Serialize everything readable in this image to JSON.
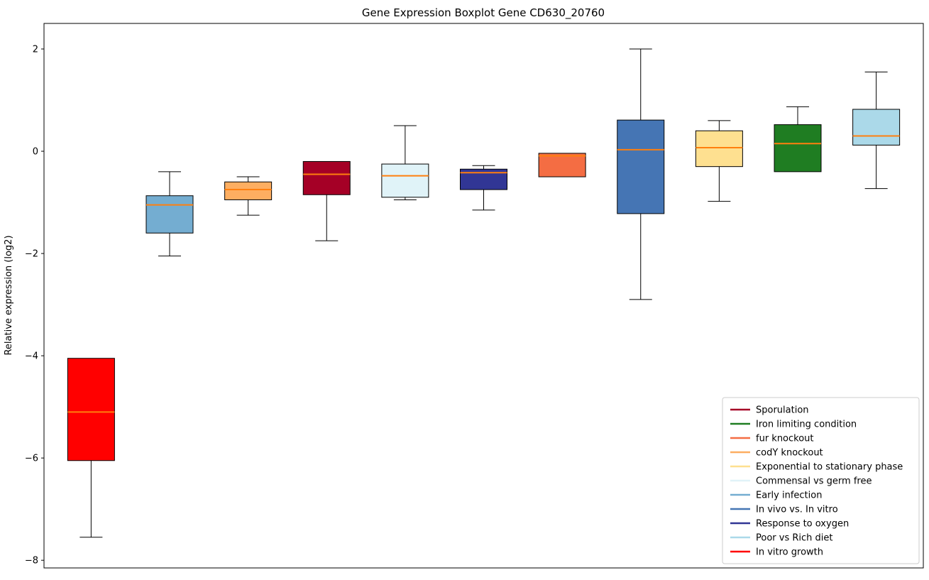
{
  "chart_data": {
    "type": "boxplot",
    "title": "Gene Expression Boxplot Gene CD630_20760",
    "xlabel": "",
    "ylabel": "Relative expression (log2)",
    "ylim": [
      -8.15,
      2.5
    ],
    "yticks": [
      2,
      0,
      -2,
      -4,
      -6,
      -8
    ],
    "ytick_labels": [
      "2",
      "0",
      "−2",
      "−4",
      "−6",
      "−8"
    ],
    "grid": false,
    "median_color": "#ff7f0e",
    "whisker_color": "#000000",
    "box_edge_color": "#000000",
    "legend_position": "lower right",
    "groups": [
      {
        "name": "In vitro growth",
        "color": "#ff0000",
        "q1": -6.05,
        "median": -5.1,
        "q3": -4.05,
        "whisker_low": -7.55,
        "whisker_high": -4.05
      },
      {
        "name": "Early infection",
        "color": "#74add1",
        "q1": -1.6,
        "median": -1.05,
        "q3": -0.87,
        "whisker_low": -2.05,
        "whisker_high": -0.4
      },
      {
        "name": "codY knockout",
        "color": "#fdae61",
        "q1": -0.95,
        "median": -0.75,
        "q3": -0.6,
        "whisker_low": -1.25,
        "whisker_high": -0.5
      },
      {
        "name": "Sporulation",
        "color": "#a50026",
        "q1": -0.85,
        "median": -0.45,
        "q3": -0.2,
        "whisker_low": -1.75,
        "whisker_high": -0.2
      },
      {
        "name": "Commensal vs germ free",
        "color": "#e0f3f8",
        "q1": -0.9,
        "median": -0.48,
        "q3": -0.25,
        "whisker_low": -0.95,
        "whisker_high": 0.5
      },
      {
        "name": "Response to oxygen",
        "color": "#313695",
        "q1": -0.75,
        "median": -0.42,
        "q3": -0.35,
        "whisker_low": -1.15,
        "whisker_high": -0.28
      },
      {
        "name": "fur knockout",
        "color": "#f46d43",
        "q1": -0.5,
        "median": -0.09,
        "q3": -0.04,
        "whisker_low": -0.5,
        "whisker_high": -0.04
      },
      {
        "name": "In vivo vs. In vitro",
        "color": "#4575b4",
        "q1": -1.22,
        "median": 0.03,
        "q3": 0.61,
        "whisker_low": -2.9,
        "whisker_high": 2.0
      },
      {
        "name": "Exponential to stationary phase",
        "color": "#fee090",
        "q1": -0.3,
        "median": 0.07,
        "q3": 0.4,
        "whisker_low": -0.98,
        "whisker_high": 0.6
      },
      {
        "name": "Iron limiting condition",
        "color": "#1f7d22",
        "q1": -0.4,
        "median": 0.15,
        "q3": 0.52,
        "whisker_low": -0.4,
        "whisker_high": 0.87
      },
      {
        "name": "Poor vs Rich diet",
        "color": "#abd9e9",
        "q1": 0.12,
        "median": 0.3,
        "q3": 0.82,
        "whisker_low": -0.73,
        "whisker_high": 1.55
      }
    ],
    "legend_order": [
      "Sporulation",
      "Iron limiting condition",
      "fur knockout",
      "codY knockout",
      "Exponential to stationary phase",
      "Commensal vs germ free",
      "Early infection",
      "In vivo vs. In vitro",
      "Response to oxygen",
      "Poor vs Rich diet",
      "In vitro growth"
    ]
  }
}
